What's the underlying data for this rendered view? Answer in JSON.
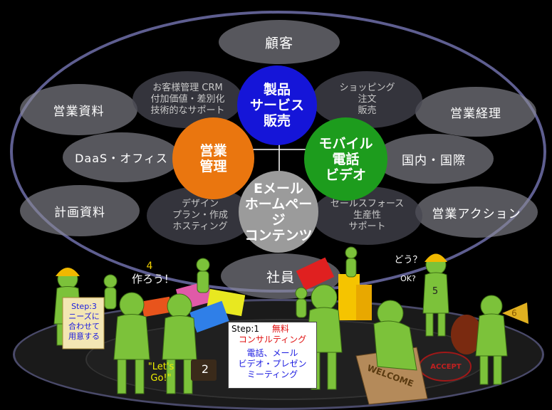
{
  "center_nodes": {
    "top": {
      "line1": "製品",
      "line2": "サービス",
      "line3": "販売"
    },
    "left": {
      "line1": "営業",
      "line2": "管理"
    },
    "right": {
      "line1": "モバイル",
      "line2": "電話",
      "line3": "ビデオ"
    },
    "bottom": {
      "line1": "Eメール",
      "line2": "ホームページ",
      "line3": "コンテンツ"
    }
  },
  "outer_pills": {
    "customer": "顧客",
    "sales_docs": "営業資料",
    "sales_manager": "営業経理",
    "daas": "DaaS・オフィス",
    "domestic": "国内・国際",
    "plan_docs": "計画資料",
    "sales_action": "営業アクション",
    "employee": "社員"
  },
  "inner_pills": {
    "crm": {
      "line1": "お客様管理 CRM",
      "line2": "付加価値・差別化",
      "line3": "技術的なサポート"
    },
    "shopping": {
      "line1": "ショッピング",
      "line2": "注文",
      "line3": "販売"
    },
    "design": {
      "line1": "デザイン",
      "line2": "プラン・作成",
      "line3": "ホスティング"
    },
    "salesforce": {
      "line1": "セールスフォース",
      "line2": "生産性",
      "line3": "サポート"
    }
  },
  "figures": {
    "step3": {
      "line1": "Step:3",
      "line2": "ニーズに",
      "line3": "合わせて",
      "line4": "用意する"
    },
    "step4_num": "4",
    "step4_text": "作ろう！",
    "lets_go": {
      "line1": "\"Let's",
      "line2": "Go!\""
    },
    "case_num": "2",
    "step1": {
      "title": "Step:1",
      "free": "無料",
      "consult": "コンサルティング",
      "l1": "電話、メール",
      "l2": "ビデオ・プレゼン",
      "l3": "ミーティング"
    },
    "dou": "どう？",
    "ok": "OK?",
    "num5": "5",
    "num6": "6",
    "welcome": "WELCOME",
    "accept": "ACCEPT"
  },
  "colors": {
    "top": "#1a1ad6",
    "left": "#e8740f",
    "right": "#1c9a1c",
    "bottom": "#9a9a9a",
    "ring": "#6a6a9a",
    "figure": "#7cc23a",
    "helmet": "#f0b800"
  }
}
